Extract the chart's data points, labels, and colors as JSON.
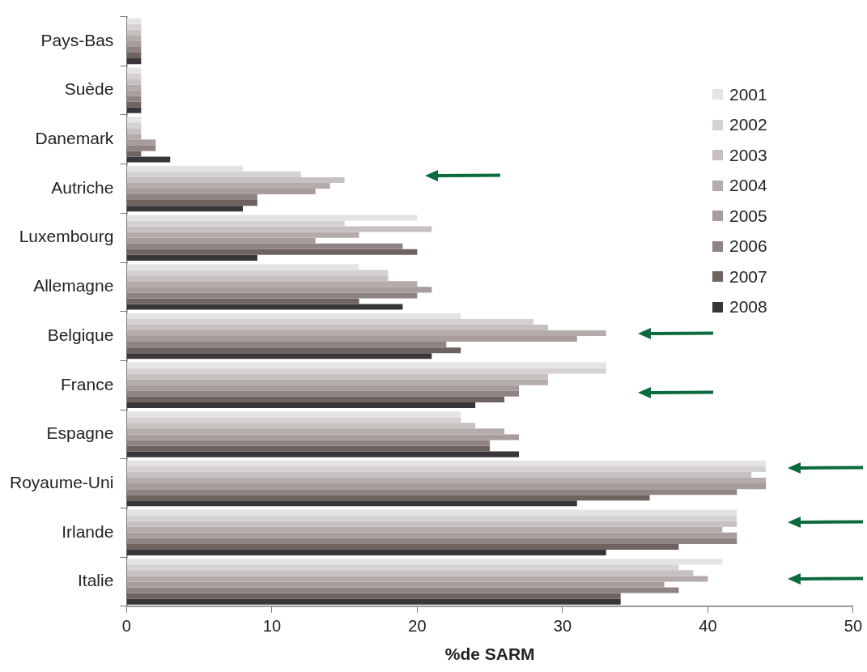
{
  "chart_data": {
    "type": "bar",
    "orientation": "horizontal",
    "xlabel": "%de SARM",
    "categories": [
      "Pays-Bas",
      "Suède",
      "Danemark",
      "Autriche",
      "Luxembourg",
      "Allemagne",
      "Belgique",
      "France",
      "Espagne",
      "Royaume-Uni",
      "Irlande",
      "Italie"
    ],
    "series": [
      {
        "name": "2001",
        "color": "#e4e4e4",
        "values": [
          1,
          1,
          1,
          8,
          20,
          16,
          23,
          33,
          23,
          44,
          42,
          41
        ]
      },
      {
        "name": "2002",
        "color": "#d6d2d2",
        "values": [
          1,
          1,
          1,
          12,
          15,
          18,
          28,
          33,
          23,
          44,
          42,
          38
        ]
      },
      {
        "name": "2003",
        "color": "#c6c0c0",
        "values": [
          1,
          1,
          1,
          15,
          21,
          18,
          29,
          29,
          24,
          43,
          42,
          39
        ]
      },
      {
        "name": "2004",
        "color": "#b5abab",
        "values": [
          1,
          1,
          1,
          14,
          16,
          20,
          33,
          29,
          26,
          44,
          41,
          40
        ]
      },
      {
        "name": "2005",
        "color": "#a89c9c",
        "values": [
          1,
          1,
          2,
          13,
          13,
          21,
          31,
          27,
          27,
          44,
          42,
          37
        ]
      },
      {
        "name": "2006",
        "color": "#8f8383",
        "values": [
          1,
          1,
          2,
          9,
          19,
          20,
          22,
          27,
          25,
          42,
          42,
          38
        ]
      },
      {
        "name": "2007",
        "color": "#6f6360",
        "values": [
          1,
          1,
          1,
          9,
          20,
          16,
          23,
          26,
          25,
          36,
          38,
          34
        ]
      },
      {
        "name": "2008",
        "color": "#38363b",
        "values": [
          1,
          1,
          3,
          8,
          9,
          19,
          21,
          24,
          27,
          31,
          33,
          34
        ]
      }
    ],
    "xlim": [
      0,
      50
    ],
    "xticks": [
      0,
      10,
      20,
      30,
      40,
      50
    ],
    "grid": false,
    "legend": "top right"
  }
}
